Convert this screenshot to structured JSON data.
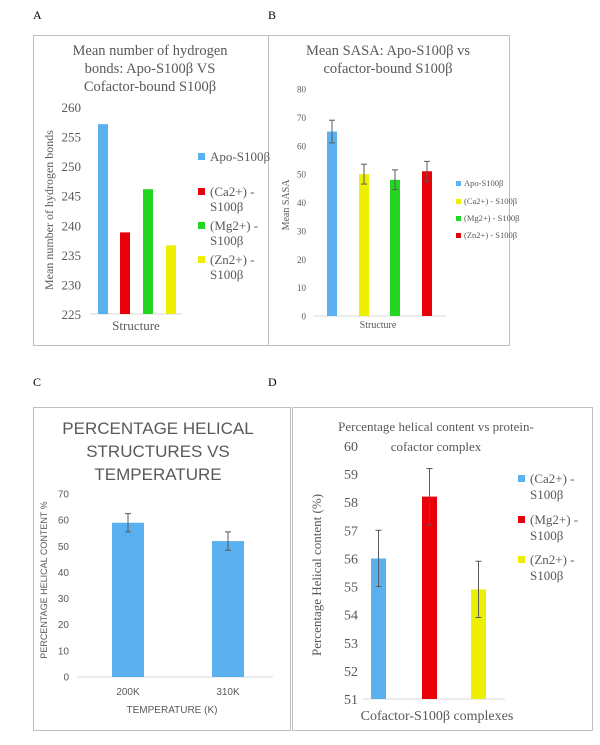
{
  "panels": {
    "A": "A",
    "B": "B",
    "C": "C",
    "D": "D"
  },
  "chart_data": [
    {
      "id": "A",
      "type": "bar",
      "title": "Mean number of hydrogen bonds: Apo-S100β VS Cofactor-bound S100β",
      "title_lines": [
        "Mean number of hydrogen",
        "bonds: Apo-S100β VS",
        "Cofactor-bound S100β"
      ],
      "xlabel": "Structure",
      "ylabel": "Mean number of hydrogen bonds",
      "ylim": [
        225,
        260
      ],
      "yticks": [
        "225",
        "230",
        "235",
        "240",
        "245",
        "250",
        "255",
        "260"
      ],
      "grid": false,
      "legend_position": "right",
      "series": [
        {
          "name": "Apo-S100β",
          "name_lines": [
            "Apo-S100β"
          ],
          "value": 257.1,
          "color": "#5bb1f0"
        },
        {
          "name": "(Ca2+) - S100β",
          "name_lines": [
            "(Ca2+) -",
            "S100β"
          ],
          "value": 238.8,
          "color": "#e8000b"
        },
        {
          "name": "(Mg2+) - S100β",
          "name_lines": [
            "(Mg2+) -",
            "S100β"
          ],
          "value": 246.1,
          "color": "#22d622"
        },
        {
          "name": "(Zn2+) - S100β",
          "name_lines": [
            "(Zn2+) -",
            "S100β"
          ],
          "value": 236.6,
          "color": "#ecf000"
        }
      ]
    },
    {
      "id": "B",
      "type": "bar",
      "title": "Mean SASA: Apo-S100β vs cofactor-bound S100β",
      "title_lines": [
        "Mean SASA: Apo-S100β vs",
        "cofactor-bound S100β"
      ],
      "xlabel": "Structure",
      "ylabel": "Mean SASA",
      "ylim": [
        0,
        80
      ],
      "yticks": [
        "0",
        "10",
        "20",
        "30",
        "40",
        "50",
        "60",
        "70",
        "80"
      ],
      "grid": false,
      "legend_position": "right",
      "series": [
        {
          "name": "Apo-S100β",
          "value": 65,
          "error": 4,
          "color": "#5bb1f0"
        },
        {
          "name": "(Ca2+) - S100β",
          "value": 50,
          "error": 3.5,
          "color": "#ecf000"
        },
        {
          "name": "(Mg2+) - S100β",
          "value": 48,
          "error": 3.5,
          "color": "#22d622"
        },
        {
          "name": "(Zn2+) - S100β",
          "value": 51,
          "error": 3.5,
          "color": "#e8000b"
        }
      ]
    },
    {
      "id": "C",
      "type": "bar",
      "title": "PERCENTAGE HELICAL STRUCTURES VS TEMPERATURE",
      "title_lines": [
        "PERCENTAGE HELICAL",
        "STRUCTURES VS",
        "TEMPERATURE"
      ],
      "xlabel": "TEMPERATURE (K)",
      "ylabel": "PERCENTAGE HELICAL CONTENT %",
      "ylim": [
        0,
        70
      ],
      "yticks": [
        "0",
        "10",
        "20",
        "30",
        "40",
        "50",
        "60",
        "70"
      ],
      "grid": false,
      "categories": [
        "200K",
        "310K"
      ],
      "values": [
        59,
        52
      ],
      "errors": [
        3.5,
        3.5
      ],
      "color": "#5bb1f0"
    },
    {
      "id": "D",
      "type": "bar",
      "title": "Percentage helical content vs protein-cofactor complex",
      "title_lines": [
        "Percentage helical content vs protein-",
        "cofactor complex"
      ],
      "xlabel": "Cofactor-S100β complexes",
      "ylabel": "Percentage Helical content (%)",
      "ylim": [
        51,
        60
      ],
      "yticks": [
        "51",
        "52",
        "53",
        "54",
        "55",
        "56",
        "57",
        "58",
        "59",
        "60"
      ],
      "grid": false,
      "legend_position": "right",
      "series": [
        {
          "name": "(Ca2+) - S100β",
          "name_lines": [
            "(Ca2+) -",
            "S100β"
          ],
          "value": 56.0,
          "error": 1.0,
          "color": "#5bb1f0"
        },
        {
          "name": "(Mg2+) - S100β",
          "name_lines": [
            "(Mg2+) -",
            "S100β"
          ],
          "value": 58.2,
          "error": 1.0,
          "color": "#e8000b"
        },
        {
          "name": "(Zn2+) - S100β",
          "name_lines": [
            "(Zn2+) -",
            "S100β"
          ],
          "value": 54.9,
          "error": 1.0,
          "color": "#ecf000"
        }
      ]
    }
  ]
}
